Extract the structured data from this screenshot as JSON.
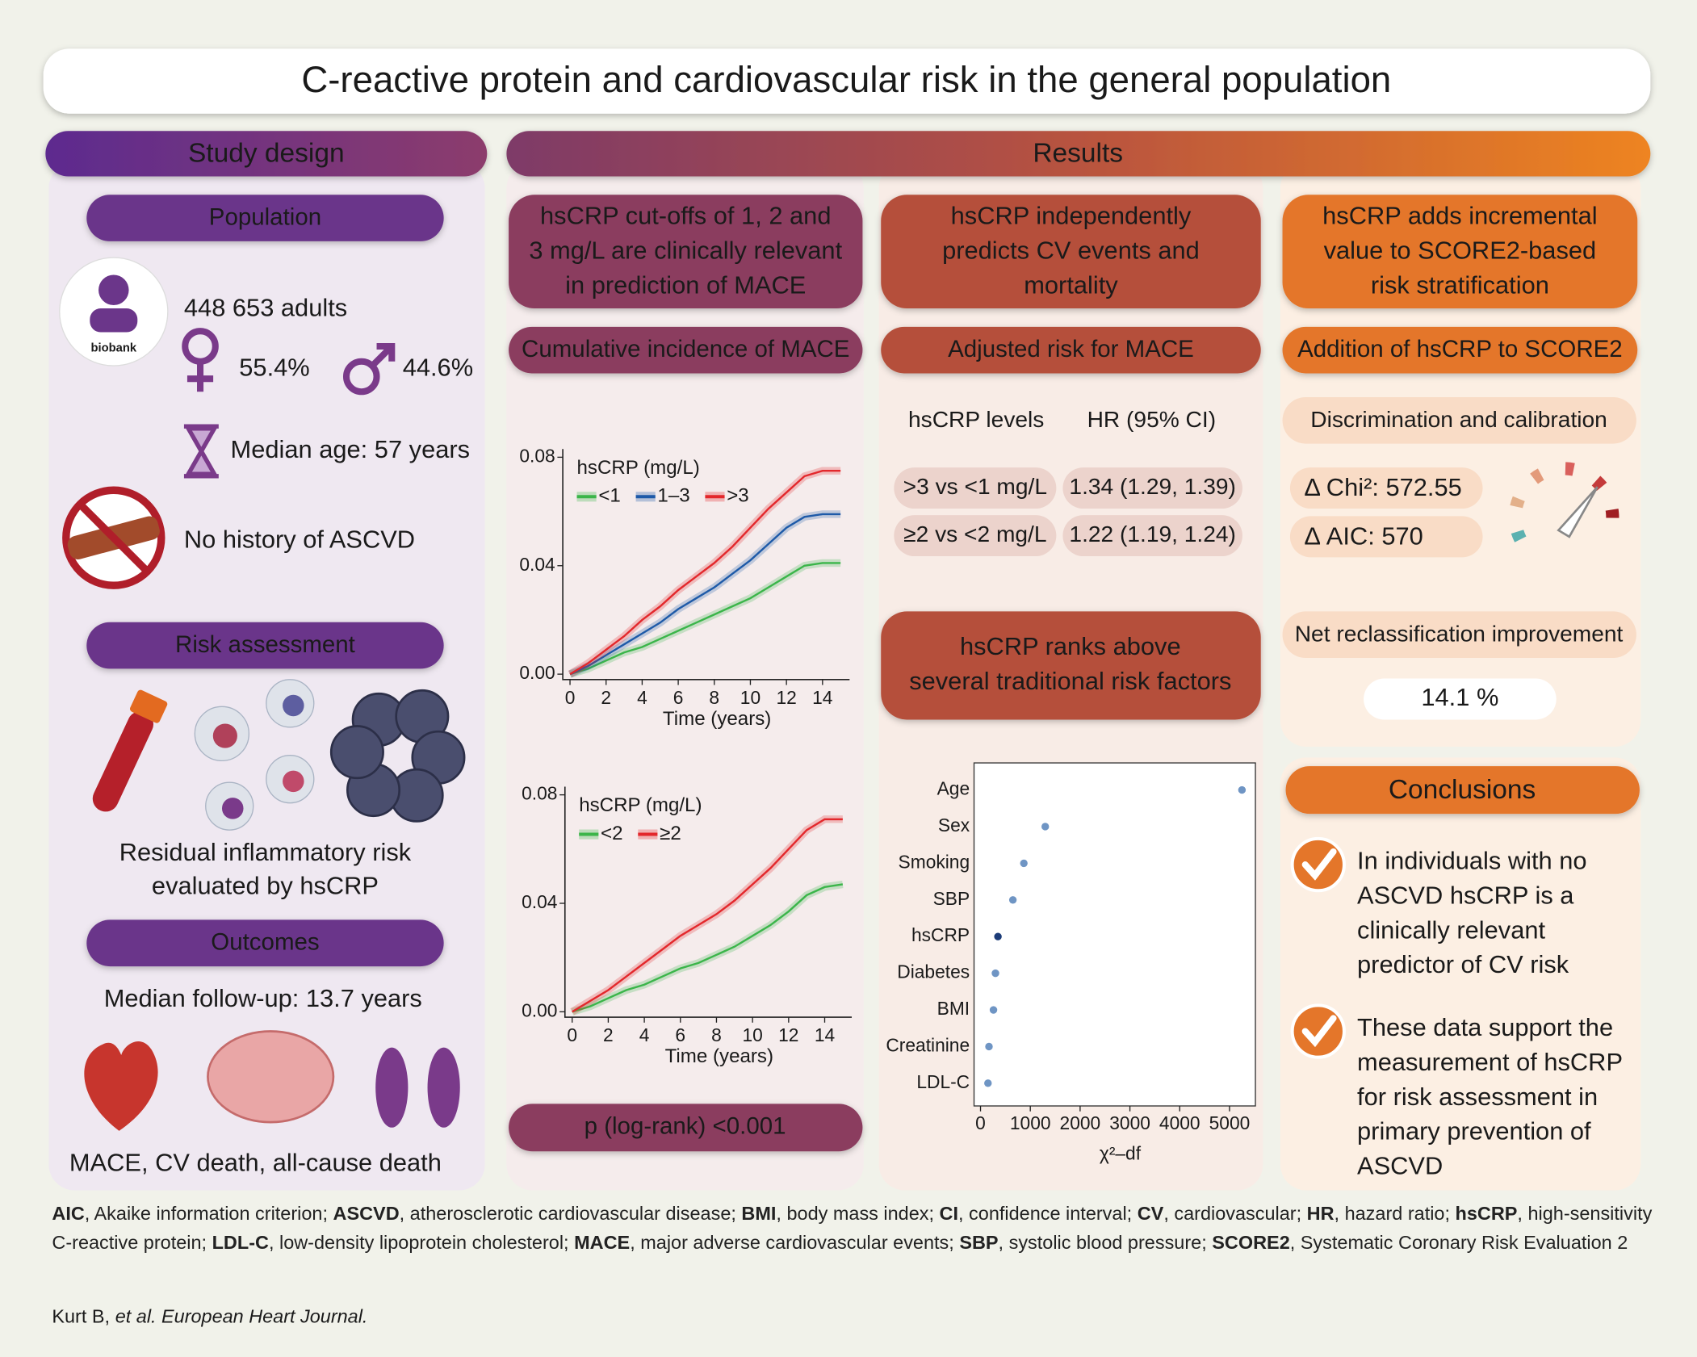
{
  "title": "C-reactive protein and cardiovascular risk in the general population",
  "study_design": {
    "header": "Study design",
    "population": {
      "header": "Population",
      "logo": "biobank",
      "adults": "448 653 adults",
      "female": "55.4%",
      "male": "44.6%",
      "age": "Median age: 57 years",
      "history": "No history of ASCVD"
    },
    "risk_assessment": {
      "header": "Risk assessment",
      "lines": [
        "Residual inflammatory risk",
        "evaluated by hsCRP"
      ]
    },
    "outcomes": {
      "header": "Outcomes",
      "follow_up": "Median follow-up: 13.7 years",
      "endpoints": "MACE, CV death, all-cause death"
    }
  },
  "results": {
    "header": "Results",
    "cutoffs": {
      "lines": [
        "hsCRP cut-offs of 1, 2 and",
        "3 mg/L are clinically relevant",
        "in prediction of MACE"
      ],
      "subheader": "Cumulative incidence of MACE",
      "p_value": "p (log-rank) <0.001"
    },
    "independent": {
      "lines": [
        "hsCRP independently",
        "predicts CV events and",
        "mortality"
      ],
      "subheader": "Adjusted risk for MACE",
      "columns": [
        "hsCRP levels",
        "HR (95% CI)"
      ],
      "rows": [
        [
          ">3 vs <1 mg/L",
          "1.34 (1.29, 1.39)"
        ],
        [
          "≥2 vs <2 mg/L",
          "1.22 (1.19, 1.24)"
        ]
      ],
      "ranks_lines": [
        "hsCRP ranks above",
        "several traditional risk factors"
      ]
    },
    "incremental": {
      "lines": [
        "hsCRP adds incremental",
        "value to SCORE2-based",
        "risk stratification"
      ],
      "subheader": "Addition of hsCRP to SCORE2",
      "discrimination": "Discrimination and calibration",
      "chi2": "Δ Chi²: 572.55",
      "aic": "Δ AIC: 570",
      "nri_label": "Net reclassification improvement",
      "nri": "14.1 %"
    }
  },
  "conclusions": {
    "header": "Conclusions",
    "items": [
      [
        "In individuals with no",
        "ASCVD hsCRP is a",
        "clinically relevant",
        "predictor of CV risk"
      ],
      [
        "These data support the",
        "measurement of hsCRP",
        "for risk assessment in",
        "primary prevention of",
        "ASCVD"
      ]
    ]
  },
  "chart_data": [
    {
      "type": "line",
      "legend_title": "hsCRP (mg/L)",
      "x_label": "Time (years)",
      "x": [
        0,
        1,
        2,
        3,
        4,
        5,
        6,
        7,
        8,
        9,
        10,
        11,
        12,
        13,
        14,
        15
      ],
      "series": [
        {
          "name": "<1",
          "color": "#3bb54a",
          "values": [
            0,
            0.002,
            0.005,
            0.008,
            0.01,
            0.013,
            0.016,
            0.019,
            0.022,
            0.025,
            0.028,
            0.032,
            0.036,
            0.04,
            0.041,
            0.041
          ]
        },
        {
          "name": "1–3",
          "color": "#1e5aa8",
          "values": [
            0,
            0.003,
            0.007,
            0.011,
            0.015,
            0.019,
            0.024,
            0.028,
            0.032,
            0.037,
            0.042,
            0.048,
            0.054,
            0.058,
            0.059,
            0.059
          ]
        },
        {
          "name": ">3",
          "color": "#e3282c",
          "values": [
            0,
            0.004,
            0.009,
            0.014,
            0.02,
            0.025,
            0.031,
            0.036,
            0.041,
            0.047,
            0.054,
            0.061,
            0.067,
            0.073,
            0.075,
            0.075
          ]
        }
      ],
      "xlim": [
        -0.4,
        15.5
      ],
      "ylim": [
        -0.002,
        0.083
      ],
      "xticks": [
        0,
        2,
        4,
        6,
        8,
        10,
        12,
        14
      ],
      "yticks": [
        {
          "value": 0,
          "label": "0.00"
        },
        {
          "value": 0.04,
          "label": "0.04"
        },
        {
          "value": 0.08,
          "label": "0.08"
        }
      ]
    },
    {
      "type": "line",
      "legend_title": "hsCRP (mg/L)",
      "x_label": "Time (years)",
      "x": [
        0,
        1,
        2,
        3,
        4,
        5,
        6,
        7,
        8,
        9,
        10,
        11,
        12,
        13,
        14,
        15
      ],
      "series": [
        {
          "name": "<2",
          "color": "#3bb54a",
          "values": [
            0,
            0.002,
            0.005,
            0.008,
            0.01,
            0.013,
            0.016,
            0.018,
            0.021,
            0.024,
            0.028,
            0.032,
            0.037,
            0.043,
            0.046,
            0.047
          ]
        },
        {
          "name": "≥2",
          "color": "#e3282c",
          "values": [
            0,
            0.004,
            0.008,
            0.013,
            0.018,
            0.023,
            0.028,
            0.032,
            0.036,
            0.041,
            0.047,
            0.053,
            0.06,
            0.067,
            0.071,
            0.071
          ]
        }
      ],
      "xlim": [
        -0.4,
        15.5
      ],
      "ylim": [
        -0.002,
        0.083
      ],
      "xticks": [
        0,
        2,
        4,
        6,
        8,
        10,
        12,
        14
      ],
      "yticks": [
        {
          "value": 0,
          "label": "0.00"
        },
        {
          "value": 0.04,
          "label": "0.04"
        },
        {
          "value": 0.08,
          "label": "0.08"
        }
      ]
    },
    {
      "type": "dot",
      "categories": [
        "Age",
        "Sex",
        "Smoking",
        "SBP",
        "hsCRP",
        "Diabetes",
        "BMI",
        "Creatinine",
        "LDL-C"
      ],
      "values": [
        5250,
        1300,
        870,
        650,
        350,
        300,
        260,
        170,
        150
      ],
      "colors": [
        "#6f95c4",
        "#6f95c4",
        "#6f95c4",
        "#6f95c4",
        "#1c3c78",
        "#6f95c4",
        "#6f95c4",
        "#6f95c4",
        "#6f95c4"
      ],
      "x_label": "χ²–df",
      "xlim": [
        -130,
        5520
      ],
      "xticks": [
        0,
        1000,
        2000,
        3000,
        4000,
        5000
      ]
    }
  ],
  "footnote": [
    {
      "abbr": "AIC",
      "def": ", Akaike information criterion;"
    },
    {
      "abbr": "ASCVD",
      "def": ", atherosclerotic cardiovascular disease;"
    },
    {
      "abbr": "BMI",
      "def": ", body mass index;"
    },
    {
      "abbr": "CI",
      "def": ", confidence interval;"
    },
    {
      "abbr": "CV",
      "def": ", cardiovascular;"
    },
    {
      "abbr": "HR",
      "def": ", hazard ratio;"
    },
    {
      "abbr": "hsCRP",
      "def": ", high-sensitivity C-reactive protein;"
    },
    {
      "abbr": "LDL-C",
      "def": ", low-density lipoprotein cholesterol;"
    },
    {
      "abbr": "MACE",
      "def": ", major adverse cardiovascular events;"
    },
    {
      "abbr": "SBP",
      "def": ", systolic blood pressure;"
    },
    {
      "abbr": "SCORE2",
      "def": ", Systematic Coronary Risk Evaluation 2"
    }
  ],
  "citation": {
    "authors": "Kurt B,",
    "source": "et al. European Heart Journal."
  }
}
